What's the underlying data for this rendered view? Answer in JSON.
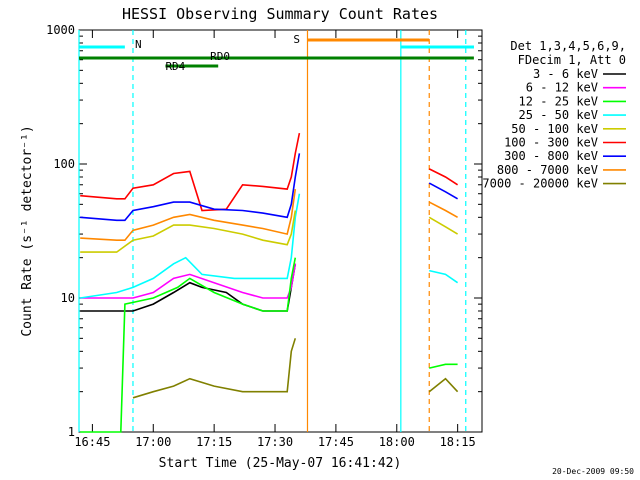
{
  "chart_data": {
    "type": "line",
    "title": "HESSI Observing Summary Count Rates",
    "xlabel": "Start Time (25-May-07 16:41:42)",
    "ylabel": "Count Rate (s⁻¹ detector⁻¹)",
    "yscale": "log",
    "ylim": [
      1,
      1000
    ],
    "xlim": [
      "16:41:42",
      "18:21:00"
    ],
    "x_ticks": [
      "16:45",
      "17:00",
      "17:15",
      "17:30",
      "17:45",
      "18:00",
      "18:15"
    ],
    "y_ticks": [
      "1",
      "10",
      "100",
      "1000"
    ],
    "grid": false,
    "legend": {
      "position": "top-right",
      "header": [
        "Det 1,3,4,5,6,9,",
        "FDecim 1, Att 0"
      ]
    },
    "series": [
      {
        "name": "3 - 6 keV",
        "color": "#000000",
        "points": [
          [
            "16:42",
            8
          ],
          [
            "16:51",
            8
          ],
          [
            "16:55",
            8
          ],
          [
            "17:00",
            9
          ],
          [
            "17:05",
            11
          ],
          [
            "17:09",
            13
          ],
          [
            "17:12",
            12
          ],
          [
            "17:18",
            11
          ],
          [
            "17:22",
            9
          ],
          [
            "17:27",
            8
          ],
          [
            "17:33",
            8
          ],
          [
            "17:34",
            12
          ],
          [
            "17:35",
            18
          ]
        ]
      },
      {
        "name": "6 - 12 keV",
        "color": "#ff00ff",
        "points": [
          [
            "16:42",
            10
          ],
          [
            "16:51",
            10
          ],
          [
            "16:55",
            10
          ],
          [
            "17:00",
            11
          ],
          [
            "17:05",
            14
          ],
          [
            "17:09",
            15
          ],
          [
            "17:15",
            13
          ],
          [
            "17:22",
            11
          ],
          [
            "17:27",
            10
          ],
          [
            "17:33",
            10
          ],
          [
            "17:34",
            12
          ],
          [
            "17:35",
            18
          ]
        ]
      },
      {
        "name": "12 - 25 keV",
        "color": "#00ff00",
        "points": [
          [
            "16:42",
            1
          ],
          [
            "16:50",
            1
          ],
          [
            "16:52",
            1
          ],
          [
            "16:53",
            9
          ],
          [
            "17:00",
            10
          ],
          [
            "17:06",
            12
          ],
          [
            "17:09",
            14
          ],
          [
            "17:15",
            11
          ],
          [
            "17:22",
            9
          ],
          [
            "17:27",
            8
          ],
          [
            "17:33",
            8
          ],
          [
            "17:34",
            14
          ],
          [
            "17:35",
            20
          ],
          [
            "18:08",
            3
          ],
          [
            "18:12",
            3.2
          ],
          [
            "18:15",
            3.2
          ]
        ]
      },
      {
        "name": "25 - 50 keV",
        "color": "#00ffff",
        "points": [
          [
            "16:42",
            10
          ],
          [
            "16:51",
            11
          ],
          [
            "16:55",
            12
          ],
          [
            "17:00",
            14
          ],
          [
            "17:05",
            18
          ],
          [
            "17:08",
            20
          ],
          [
            "17:12",
            15
          ],
          [
            "17:20",
            14
          ],
          [
            "17:24",
            14
          ],
          [
            "17:28",
            14
          ],
          [
            "17:33",
            14
          ],
          [
            "17:34",
            20
          ],
          [
            "17:35",
            40
          ],
          [
            "17:36",
            60
          ],
          [
            "18:08",
            16
          ],
          [
            "18:12",
            15
          ],
          [
            "18:15",
            13
          ]
        ]
      },
      {
        "name": "50 - 100 keV",
        "color": "#cccc00",
        "points": [
          [
            "16:42",
            22
          ],
          [
            "16:51",
            22
          ],
          [
            "16:55",
            27
          ],
          [
            "17:00",
            29
          ],
          [
            "17:05",
            35
          ],
          [
            "17:09",
            35
          ],
          [
            "17:15",
            33
          ],
          [
            "17:22",
            30
          ],
          [
            "17:27",
            27
          ],
          [
            "17:33",
            25
          ],
          [
            "17:34",
            30
          ],
          [
            "17:35",
            45
          ],
          [
            "18:08",
            40
          ],
          [
            "18:12",
            34
          ],
          [
            "18:15",
            30
          ]
        ]
      },
      {
        "name": "100 - 300 keV",
        "color": "#ff0000",
        "points": [
          [
            "16:42",
            58
          ],
          [
            "16:51",
            55
          ],
          [
            "16:53",
            55
          ],
          [
            "16:55",
            66
          ],
          [
            "17:00",
            70
          ],
          [
            "17:05",
            85
          ],
          [
            "17:09",
            88
          ],
          [
            "17:12",
            45
          ],
          [
            "17:18",
            46
          ],
          [
            "17:22",
            70
          ],
          [
            "17:27",
            68
          ],
          [
            "17:33",
            65
          ],
          [
            "17:34",
            80
          ],
          [
            "17:35",
            120
          ],
          [
            "17:36",
            170
          ],
          [
            "18:08",
            92
          ],
          [
            "18:12",
            80
          ],
          [
            "18:15",
            70
          ]
        ]
      },
      {
        "name": "300 - 800 keV",
        "color": "#0000ff",
        "points": [
          [
            "16:42",
            40
          ],
          [
            "16:51",
            38
          ],
          [
            "16:53",
            38
          ],
          [
            "16:55",
            45
          ],
          [
            "17:00",
            48
          ],
          [
            "17:05",
            52
          ],
          [
            "17:09",
            52
          ],
          [
            "17:15",
            46
          ],
          [
            "17:22",
            45
          ],
          [
            "17:27",
            43
          ],
          [
            "17:33",
            40
          ],
          [
            "17:34",
            50
          ],
          [
            "17:35",
            80
          ],
          [
            "17:36",
            120
          ],
          [
            "18:08",
            72
          ],
          [
            "18:12",
            62
          ],
          [
            "18:15",
            55
          ]
        ]
      },
      {
        "name": "800 - 7000 keV",
        "color": "#ff8800",
        "points": [
          [
            "16:42",
            28
          ],
          [
            "16:51",
            27
          ],
          [
            "16:53",
            27
          ],
          [
            "16:55",
            32
          ],
          [
            "17:00",
            35
          ],
          [
            "17:05",
            40
          ],
          [
            "17:09",
            42
          ],
          [
            "17:15",
            38
          ],
          [
            "17:22",
            35
          ],
          [
            "17:27",
            33
          ],
          [
            "17:33",
            30
          ],
          [
            "17:34",
            40
          ],
          [
            "17:35",
            65
          ],
          [
            "18:08",
            52
          ],
          [
            "18:12",
            45
          ],
          [
            "18:15",
            40
          ]
        ]
      },
      {
        "name": "7000 - 20000 keV",
        "color": "#808000",
        "points": [
          [
            "16:55",
            1.8
          ],
          [
            "17:00",
            2
          ],
          [
            "17:05",
            2.2
          ],
          [
            "17:09",
            2.5
          ],
          [
            "17:15",
            2.2
          ],
          [
            "17:22",
            2
          ],
          [
            "17:27",
            2
          ],
          [
            "17:33",
            2
          ],
          [
            "17:34",
            4
          ],
          [
            "17:35",
            5
          ],
          [
            "18:08",
            2
          ],
          [
            "18:12",
            2.5
          ],
          [
            "18:15",
            2
          ]
        ]
      }
    ],
    "annotations": [
      {
        "label": "N",
        "color": "#00ffff"
      },
      {
        "label": "S",
        "color": "#ff8800"
      },
      {
        "label": "RD0",
        "color": "#008000"
      },
      {
        "label": "RD4",
        "color": "#008000"
      }
    ]
  },
  "timestamp": "20-Dec-2009 09:50"
}
